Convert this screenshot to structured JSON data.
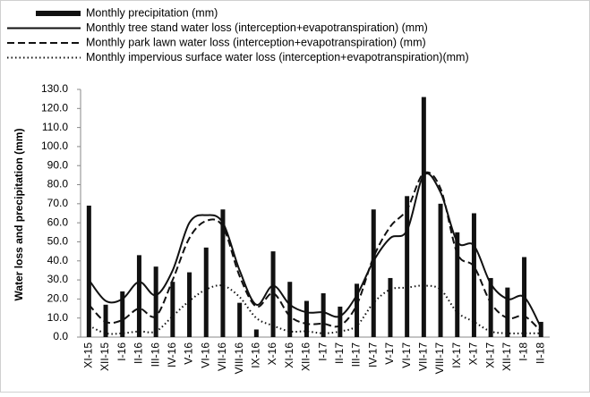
{
  "chart_data": {
    "type": "bar",
    "y_label": "Water loss and precipitation (mm)",
    "categories": [
      "XI-15",
      "XII-15",
      "I-16",
      "II-16",
      "III-16",
      "IV-16",
      "V-16",
      "VI-16",
      "VII-16",
      "VIII-16",
      "IX-16",
      "X-16",
      "XI-16",
      "XII-16",
      "I-17",
      "II-17",
      "III-17",
      "IV-17",
      "V-17",
      "VI-17",
      "VII-17",
      "VIII-17",
      "IX-17",
      "X-17",
      "XI-17",
      "XII-17",
      "I-18",
      "II-18"
    ],
    "series": [
      {
        "name": "Monthly precipitation (mm)",
        "kind": "bar",
        "color": "#111111",
        "values": [
          69,
          17,
          24,
          43,
          37,
          29,
          34,
          47,
          67,
          18,
          4,
          45,
          29,
          19,
          23,
          16,
          28,
          67,
          31,
          74,
          126,
          70,
          55,
          65,
          31,
          26,
          42,
          8
        ]
      },
      {
        "name": "Monthly tree stand water loss (interception+evapotranspiration) (mm)",
        "kind": "line",
        "dash": "solid",
        "color": "#111111",
        "values": [
          30,
          19,
          20,
          29,
          22,
          35,
          60,
          64,
          60,
          35,
          17,
          27,
          17,
          13,
          13,
          11,
          22,
          40,
          52,
          56,
          85,
          76,
          50,
          48,
          28,
          20,
          21,
          5
        ]
      },
      {
        "name": "Monthly park lawn water loss (interception+evapotranspiration) (mm)",
        "kind": "line",
        "dash": "dashed",
        "color": "#111111",
        "values": [
          17,
          8,
          9,
          15,
          11,
          30,
          52,
          61,
          58,
          32,
          16,
          23,
          11,
          7,
          7,
          6,
          17,
          42,
          58,
          67,
          86,
          78,
          44,
          37,
          18,
          10,
          11,
          3
        ]
      },
      {
        "name": "Monthly impervious surface water loss (interception+evapotranspiration)(mm)",
        "kind": "line",
        "dash": "dotted",
        "color": "#111111",
        "values": [
          6,
          2,
          2,
          3,
          3,
          11,
          19,
          25,
          27,
          21,
          10,
          6,
          3,
          3,
          2,
          3,
          6,
          18,
          25,
          26,
          27,
          25,
          13,
          8,
          3,
          2,
          2,
          2
        ]
      }
    ],
    "ylim": [
      0,
      130
    ],
    "yticks": [
      {
        "value": 0,
        "label": "0.0"
      },
      {
        "value": 10,
        "label": "10.0"
      },
      {
        "value": 20,
        "label": "20.0"
      },
      {
        "value": 30,
        "label": "30.0"
      },
      {
        "value": 40,
        "label": "40.0"
      },
      {
        "value": 50,
        "label": "50.0"
      },
      {
        "value": 60,
        "label": "60.0"
      },
      {
        "value": 70,
        "label": "70.0"
      },
      {
        "value": 80,
        "label": "80.0"
      },
      {
        "value": 90,
        "label": "90.0"
      },
      {
        "value": 100,
        "label": "100.0"
      },
      {
        "value": 110,
        "label": "110.0"
      },
      {
        "value": 120,
        "label": "120.0"
      },
      {
        "value": 130,
        "label": "130.0"
      }
    ],
    "legend": "top-left"
  }
}
